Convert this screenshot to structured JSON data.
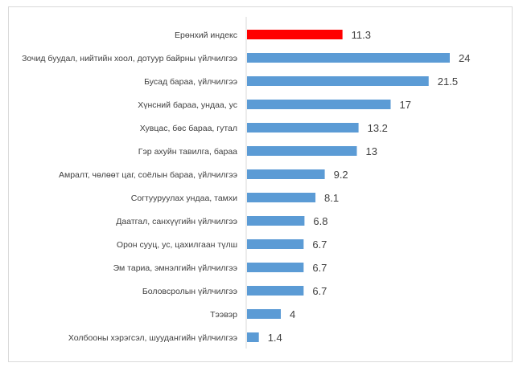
{
  "chart_data": {
    "type": "bar",
    "orientation": "horizontal",
    "categories": [
      "Ерөнхий индекс",
      "Зочид буудал, нийтийн хоол, дотуур байрны үйлчилгээ",
      "Бусад бараа, үйлчилгээ",
      "Хүнсний бараа, ундаа, ус",
      "Хувцас, бөс бараа, гутал",
      "Гэр ахуйн тавилга, бараа",
      "Амралт, чөлөөт цаг, соёлын бараа, үйлчилгээ",
      "Согтууруулах ундаа, тамхи",
      "Даатгал, санхүүгийн үйлчилгээ",
      "Орон сууц, ус, цахилгаан түлш",
      "Эм тариа, эмнэлгийн үйлчилгээ",
      "Боловсролын үйлчилгээ",
      "Тээвэр",
      "Холбооны хэрэгсэл, шуудангийн үйлчилгээ"
    ],
    "values": [
      11.3,
      24,
      21.5,
      17,
      13.2,
      13,
      9.2,
      8.1,
      6.8,
      6.7,
      6.7,
      6.7,
      4,
      1.4
    ],
    "value_labels": [
      "11.3",
      "24",
      "21.5",
      "17",
      "13.2",
      "13",
      "9.2",
      "8.1",
      "6.8",
      "6.7",
      "6.7",
      "6.7",
      "4",
      "1.4"
    ],
    "highlight_index": 0,
    "xlim": [
      0,
      30
    ],
    "title": "",
    "xlabel": "",
    "ylabel": "",
    "grid": false,
    "legend": "none",
    "colors": {
      "bar": "#5b9bd5",
      "highlight": "#ff0000",
      "axis": "#d9d9d9",
      "text": "#404040"
    }
  }
}
